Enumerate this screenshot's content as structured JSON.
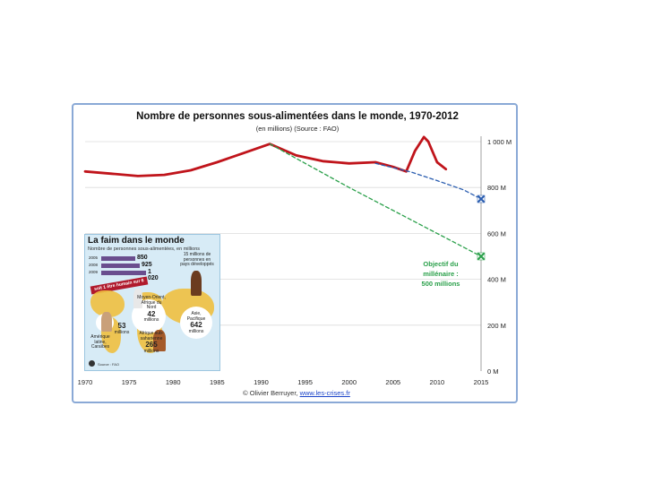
{
  "chart_data": {
    "type": "line",
    "title": "Nombre de personnes sous-alimentées dans le monde, 1970-2012",
    "subtitle": "(en millions) (Source : FAO)",
    "x_ticks": [
      "1970",
      "1975",
      "1980",
      "1985",
      "1990",
      "1995",
      "2000",
      "2005",
      "2010",
      "2015"
    ],
    "y_ticks": [
      "0 M",
      "200 M",
      "400 M",
      "600 M",
      "800 M",
      "1 000 M"
    ],
    "xlim": [
      1970,
      2015
    ],
    "ylim": [
      0,
      1000
    ],
    "grid": "horizontal",
    "series": [
      {
        "color": "#c0141b",
        "x": [
          1970,
          1973,
          1976,
          1979,
          1982,
          1985,
          1988,
          1991,
          1994,
          1997,
          2000,
          2003,
          2005,
          2006.5,
          2007.5,
          2008.5,
          2009,
          2009.5,
          2010,
          2011
        ],
        "y": [
          870,
          860,
          850,
          855,
          875,
          910,
          950,
          990,
          940,
          915,
          905,
          910,
          890,
          870,
          960,
          1020,
          1000,
          955,
          910,
          880
        ]
      },
      {
        "color": "#2a5db0",
        "style": "dashed",
        "x": [
          2003,
          2007,
          2010,
          2013,
          2015
        ],
        "y": [
          905,
          868,
          830,
          790,
          750
        ]
      },
      {
        "color": "#2aa04a",
        "style": "dashed",
        "x": [
          1991,
          2000,
          2010,
          2015
        ],
        "y": [
          990,
          800,
          600,
          500
        ]
      }
    ],
    "markers": [
      {
        "x": 2015,
        "y": 750,
        "color": "#2a5db0"
      },
      {
        "x": 2015,
        "y": 500,
        "color": "#2aa04a"
      }
    ],
    "annotations": [
      {
        "text": [
          "Objectif du",
          "millénaire :",
          "500 millions"
        ],
        "color": "#2aa04a"
      }
    ]
  },
  "credit": {
    "prefix": "© Olivier Berruyer, ",
    "link": "www.les-crises.fr"
  },
  "inset": {
    "title": "La faim dans le monde",
    "subtitle": "Nombre de personnes sous-alimentées, en millions",
    "bars": [
      {
        "year": "2005",
        "value": "850",
        "frac": 0.62
      },
      {
        "year": "2008",
        "value": "925",
        "frac": 0.7
      },
      {
        "year": "2009",
        "value": "1 020",
        "frac": 0.8
      }
    ],
    "banner": "soit 1 être humain sur 6",
    "regions": [
      {
        "name": "Amérique latine, Caraïbes",
        "value": "53",
        "unit": "millions"
      },
      {
        "name": "Moyen-Orient, Afrique du Nord",
        "value": "42",
        "unit": "millions"
      },
      {
        "name": "Afrique sub-saharienne",
        "value": "265",
        "unit": "millions"
      },
      {
        "name": "Asie, Pacifique",
        "value": "642",
        "unit": "millions"
      },
      {
        "name": "15 millions de personnes en pays développés",
        "value": "",
        "unit": ""
      }
    ],
    "source": "Source : FAO"
  }
}
